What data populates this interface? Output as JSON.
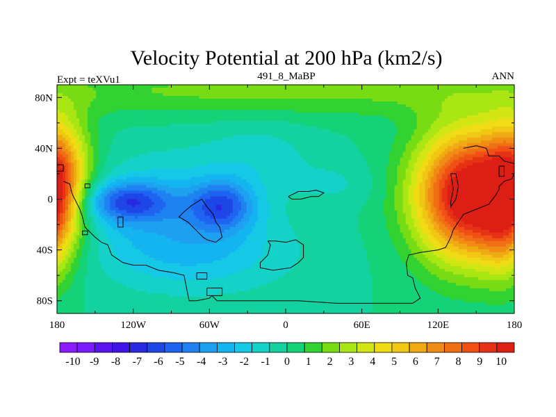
{
  "chart_data": {
    "type": "heatmap",
    "title": "Velocity Potential at 200 hPa (km2/s)",
    "left_label": "Expt = teXVu1",
    "center_label": "491_8_MaBP",
    "right_label": "ANN",
    "xrange": [
      -180,
      180
    ],
    "yrange": [
      -90,
      90
    ],
    "x_ticks": [
      {
        "value": -180,
        "label": "180"
      },
      {
        "value": -120,
        "label": "120W"
      },
      {
        "value": -60,
        "label": "60W"
      },
      {
        "value": 0,
        "label": "0"
      },
      {
        "value": 60,
        "label": "60E"
      },
      {
        "value": 120,
        "label": "120E"
      },
      {
        "value": 180,
        "label": "180"
      }
    ],
    "y_ticks": [
      {
        "value": 80,
        "label": "80N"
      },
      {
        "value": 40,
        "label": "40N"
      },
      {
        "value": 0,
        "label": "0"
      },
      {
        "value": -40,
        "label": "40S"
      },
      {
        "value": -80,
        "label": "80S"
      }
    ],
    "levels": [
      -10,
      -9,
      -8,
      -7,
      -6,
      -5,
      -4,
      -3,
      -2,
      -1,
      0,
      1,
      2,
      3,
      4,
      5,
      6,
      7,
      8,
      9,
      10
    ],
    "colorbar_labels": [
      "-10",
      "-9",
      "-8",
      "-7",
      "-6",
      "-5",
      "-4",
      "-3",
      "-2",
      "-1",
      "0",
      "1",
      "2",
      "3",
      "4",
      "5",
      "6",
      "7",
      "8",
      "9",
      "10"
    ],
    "colors": [
      "#8c1aff",
      "#7a1aff",
      "#5a14f0",
      "#3e14e6",
      "#2828e0",
      "#1e46e6",
      "#1e64f0",
      "#1e82f0",
      "#1ea0f0",
      "#14b4f0",
      "#14c8e6",
      "#14d2c8",
      "#14d2a0",
      "#14d278",
      "#32d232",
      "#78dc14",
      "#aae614",
      "#d2e614",
      "#f0dc14",
      "#f0c814",
      "#f0aa14",
      "#f08c14",
      "#f06e14",
      "#f05014",
      "#e63214",
      "#dc1e14"
    ],
    "field_centers": [
      {
        "lon": -125,
        "lat": -2,
        "amp": -4.3,
        "sx": 24,
        "sy": 11
      },
      {
        "lon": -50,
        "lat": -5,
        "amp": -4.2,
        "sx": 18,
        "sy": 14
      },
      {
        "lon": -95,
        "lat": -12,
        "amp": -2.4,
        "sx": 50,
        "sy": 32
      },
      {
        "lon": -60,
        "lat": -45,
        "amp": -1.4,
        "sx": 55,
        "sy": 22
      },
      {
        "lon": -20,
        "lat": 35,
        "amp": -1.0,
        "sx": 32,
        "sy": 20
      },
      {
        "lon": 40,
        "lat": 12,
        "amp": -0.8,
        "sx": 22,
        "sy": 12
      },
      {
        "lon": 145,
        "lat": 3,
        "amp": 11.0,
        "sx": 30,
        "sy": 36
      },
      {
        "lon": -178,
        "lat": 25,
        "amp": 4.5,
        "sx": 16,
        "sy": 30
      },
      {
        "lon": 175,
        "lat": -20,
        "amp": 3.5,
        "sx": 14,
        "sy": 30
      },
      {
        "lon": 0,
        "lat": 85,
        "amp": 1.8,
        "sx": 200,
        "sy": 14
      }
    ],
    "coastlines": [
      [
        [
          -175,
          14
        ],
        [
          -170,
          12
        ],
        [
          -168,
          4
        ],
        [
          -166,
          0
        ],
        [
          -162,
          -8
        ],
        [
          -160,
          -14
        ],
        [
          -158,
          -22
        ],
        [
          -154,
          -26
        ],
        [
          -150,
          -30
        ],
        [
          -145,
          -34
        ],
        [
          -140,
          -36
        ],
        [
          -137,
          -44
        ],
        [
          -128,
          -50
        ],
        [
          -120,
          -52
        ],
        [
          -110,
          -52
        ],
        [
          -100,
          -56
        ],
        [
          -88,
          -58
        ],
        [
          -80,
          -60
        ],
        [
          -78,
          -70
        ],
        [
          -76,
          -80
        ],
        [
          -70,
          -80
        ],
        [
          -60,
          -78
        ],
        [
          -58,
          -76
        ],
        [
          -54,
          -80
        ],
        [
          -20,
          -80
        ],
        [
          10,
          -80
        ],
        [
          40,
          -82
        ],
        [
          70,
          -82
        ],
        [
          100,
          -82
        ],
        [
          103,
          -80
        ],
        [
          106,
          -78
        ],
        [
          104,
          -74
        ],
        [
          102,
          -70
        ],
        [
          100,
          -62
        ],
        [
          96,
          -60
        ],
        [
          95,
          -50
        ],
        [
          97,
          -44
        ],
        [
          106,
          -42
        ],
        [
          120,
          -40
        ],
        [
          126,
          -38
        ],
        [
          130,
          -30
        ],
        [
          132,
          -24
        ],
        [
          140,
          -12
        ],
        [
          150,
          -8
        ],
        [
          160,
          -4
        ],
        [
          166,
          4
        ],
        [
          168,
          8
        ],
        [
          168,
          10
        ],
        [
          172,
          14
        ],
        [
          178,
          16
        ],
        [
          180,
          20
        ]
      ],
      [
        [
          -66,
          0
        ],
        [
          -74,
          -5
        ],
        [
          -80,
          -10
        ],
        [
          -84,
          -14
        ],
        [
          -77,
          -18
        ],
        [
          -70,
          -25
        ],
        [
          -65,
          -30
        ],
        [
          -62,
          -32
        ],
        [
          -55,
          -34
        ],
        [
          -50,
          -30
        ],
        [
          -52,
          -22
        ],
        [
          -55,
          -18
        ],
        [
          -57,
          -12
        ],
        [
          -62,
          -6
        ],
        [
          -66,
          0
        ]
      ],
      [
        [
          -14,
          -33
        ],
        [
          -8,
          -33
        ],
        [
          0,
          -34
        ],
        [
          8,
          -32
        ],
        [
          14,
          -36
        ],
        [
          14,
          -46
        ],
        [
          10,
          -50
        ],
        [
          4,
          -54
        ],
        [
          -10,
          -56
        ],
        [
          -20,
          -54
        ],
        [
          -20,
          -50
        ],
        [
          -14,
          -44
        ],
        [
          -12,
          -36
        ],
        [
          -14,
          -33
        ]
      ],
      [
        [
          2,
          2
        ],
        [
          10,
          6
        ],
        [
          18,
          6
        ],
        [
          24,
          7
        ],
        [
          30,
          5
        ],
        [
          26,
          2
        ],
        [
          20,
          2
        ],
        [
          12,
          0
        ],
        [
          5,
          0
        ],
        [
          2,
          2
        ]
      ],
      [
        [
          -132,
          -14
        ],
        [
          -128,
          -14
        ],
        [
          -128,
          -22
        ],
        [
          -132,
          -22
        ],
        [
          -132,
          -14
        ]
      ],
      [
        [
          -70,
          -58
        ],
        [
          -62,
          -58
        ],
        [
          -62,
          -63
        ],
        [
          -70,
          -63
        ],
        [
          -70,
          -58
        ]
      ],
      [
        [
          -62,
          -70
        ],
        [
          -50,
          -70
        ],
        [
          -50,
          -76
        ],
        [
          -62,
          -76
        ],
        [
          -62,
          -70
        ]
      ],
      [
        [
          -160,
          -25
        ],
        [
          -156,
          -25
        ],
        [
          -156,
          -28
        ],
        [
          -160,
          -28
        ],
        [
          -160,
          -25
        ]
      ],
      [
        [
          -180,
          27
        ],
        [
          -175,
          27
        ],
        [
          -175,
          22
        ],
        [
          -180,
          22
        ],
        [
          -180,
          27
        ]
      ],
      [
        [
          -158,
          12
        ],
        [
          -154,
          12
        ],
        [
          -154,
          9
        ],
        [
          -158,
          9
        ],
        [
          -158,
          12
        ]
      ],
      [
        [
          140,
          40
        ],
        [
          150,
          42
        ],
        [
          158,
          40
        ],
        [
          160,
          34
        ],
        [
          168,
          34
        ],
        [
          172,
          30
        ],
        [
          180,
          28
        ]
      ],
      [
        [
          130,
          20
        ],
        [
          134,
          20
        ],
        [
          136,
          10
        ],
        [
          134,
          0
        ],
        [
          130,
          -6
        ],
        [
          130,
          -2
        ],
        [
          132,
          8
        ],
        [
          130,
          20
        ]
      ],
      [
        [
          168,
          26
        ],
        [
          172,
          26
        ],
        [
          172,
          18
        ],
        [
          168,
          18
        ],
        [
          168,
          26
        ]
      ]
    ]
  }
}
